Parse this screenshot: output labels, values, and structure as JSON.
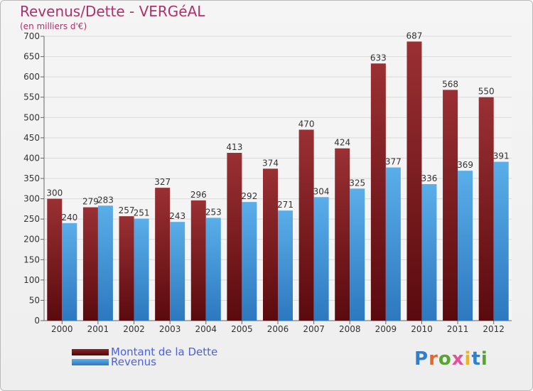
{
  "title": "Revenus/Dette - VERGéAL",
  "subtitle": "(en milliers d'€)",
  "logo": {
    "text": "Proxiti",
    "letters": [
      {
        "ch": "P",
        "color": "#2f7fcc"
      },
      {
        "ch": "r",
        "color": "#e8662a"
      },
      {
        "ch": "o",
        "color": "#55a530"
      },
      {
        "ch": "x",
        "color": "#e84f9a"
      },
      {
        "ch": "i",
        "color": "#f2b21c"
      },
      {
        "ch": "t",
        "color": "#2f7fcc"
      },
      {
        "ch": "i",
        "color": "#55a530"
      }
    ]
  },
  "chart_data": {
    "type": "bar",
    "categories": [
      "2000",
      "2001",
      "2002",
      "2003",
      "2004",
      "2005",
      "2006",
      "2007",
      "2008",
      "2009",
      "2010",
      "2011",
      "2012"
    ],
    "series": [
      {
        "name": "Montant de la Dette",
        "color": "#7a1a1e",
        "values": [
          300,
          279,
          257,
          327,
          296,
          413,
          374,
          470,
          424,
          633,
          687,
          568,
          550
        ]
      },
      {
        "name": "Revenus",
        "color": "#3d95dc",
        "values": [
          240,
          283,
          251,
          243,
          253,
          292,
          271,
          304,
          325,
          377,
          336,
          369,
          391
        ]
      }
    ],
    "ylim": [
      0,
      700
    ],
    "ytick_step": 50,
    "yticks": [
      "0",
      "50",
      "100",
      "150",
      "200",
      "250",
      "300",
      "350",
      "400",
      "450",
      "500",
      "550",
      "600",
      "650",
      "700"
    ],
    "grid": true,
    "legend_position": "bottom-left"
  }
}
